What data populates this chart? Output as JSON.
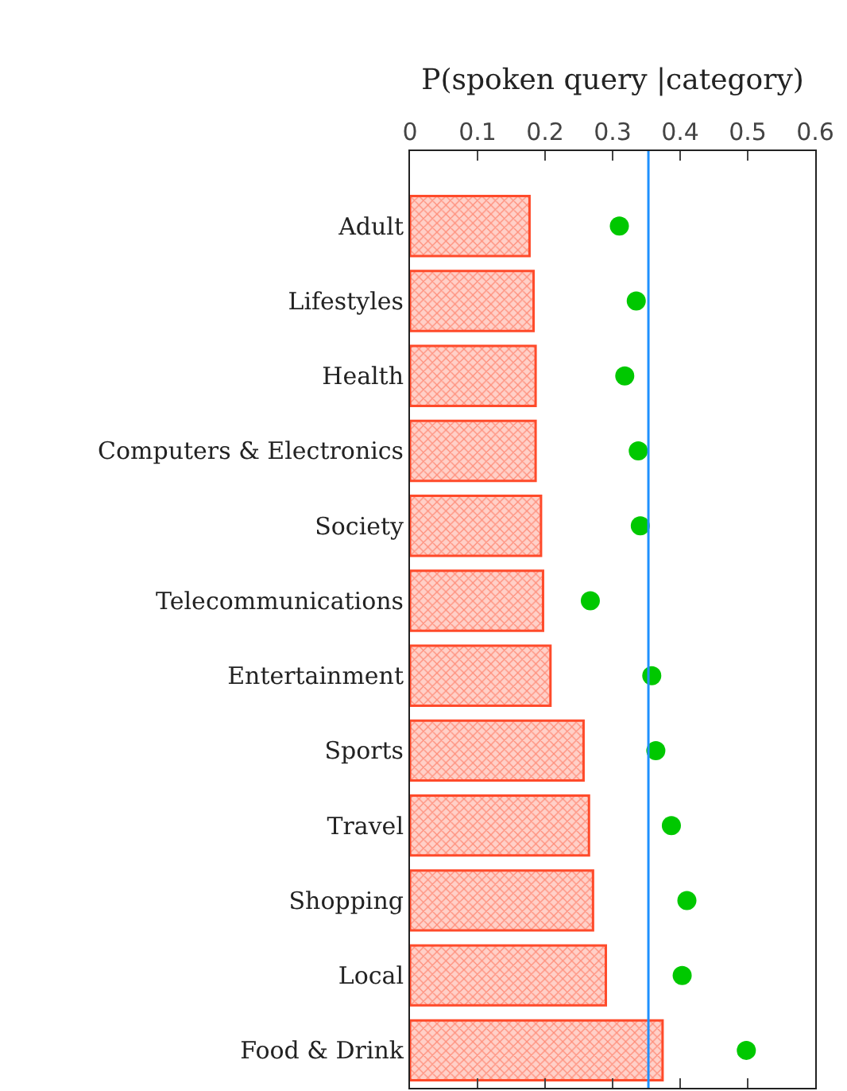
{
  "chart_data": {
    "type": "bar",
    "orientation": "horizontal",
    "xlabel": "P(spoken query |category)",
    "categories": [
      "Adult",
      "Lifestyles",
      "Health",
      "Computers & Electronics",
      "Society",
      "Telecommunications",
      "Entertainment",
      "Sports",
      "Travel",
      "Shopping",
      "Local",
      "Food & Drink"
    ],
    "xlim": [
      0,
      0.6
    ],
    "xticks": [
      0,
      0.1,
      0.2,
      0.3,
      0.4,
      0.5,
      0.6
    ],
    "series": [
      {
        "color": "#ff4a2a",
        "values": [
          0.177,
          0.183,
          0.186,
          0.186,
          0.194,
          0.197,
          0.208,
          0.257,
          0.265,
          0.271,
          0.29,
          0.374
        ]
      },
      {
        "type": "scatter",
        "marker": "circle",
        "color": "#00c800",
        "values": [
          0.31,
          0.335,
          0.318,
          0.338,
          0.341,
          0.267,
          0.358,
          0.364,
          0.387,
          0.41,
          0.403,
          0.498
        ]
      }
    ],
    "ref_lines": [
      {
        "axis": "x",
        "value": 0.353,
        "color": "#1e90ff"
      }
    ]
  }
}
